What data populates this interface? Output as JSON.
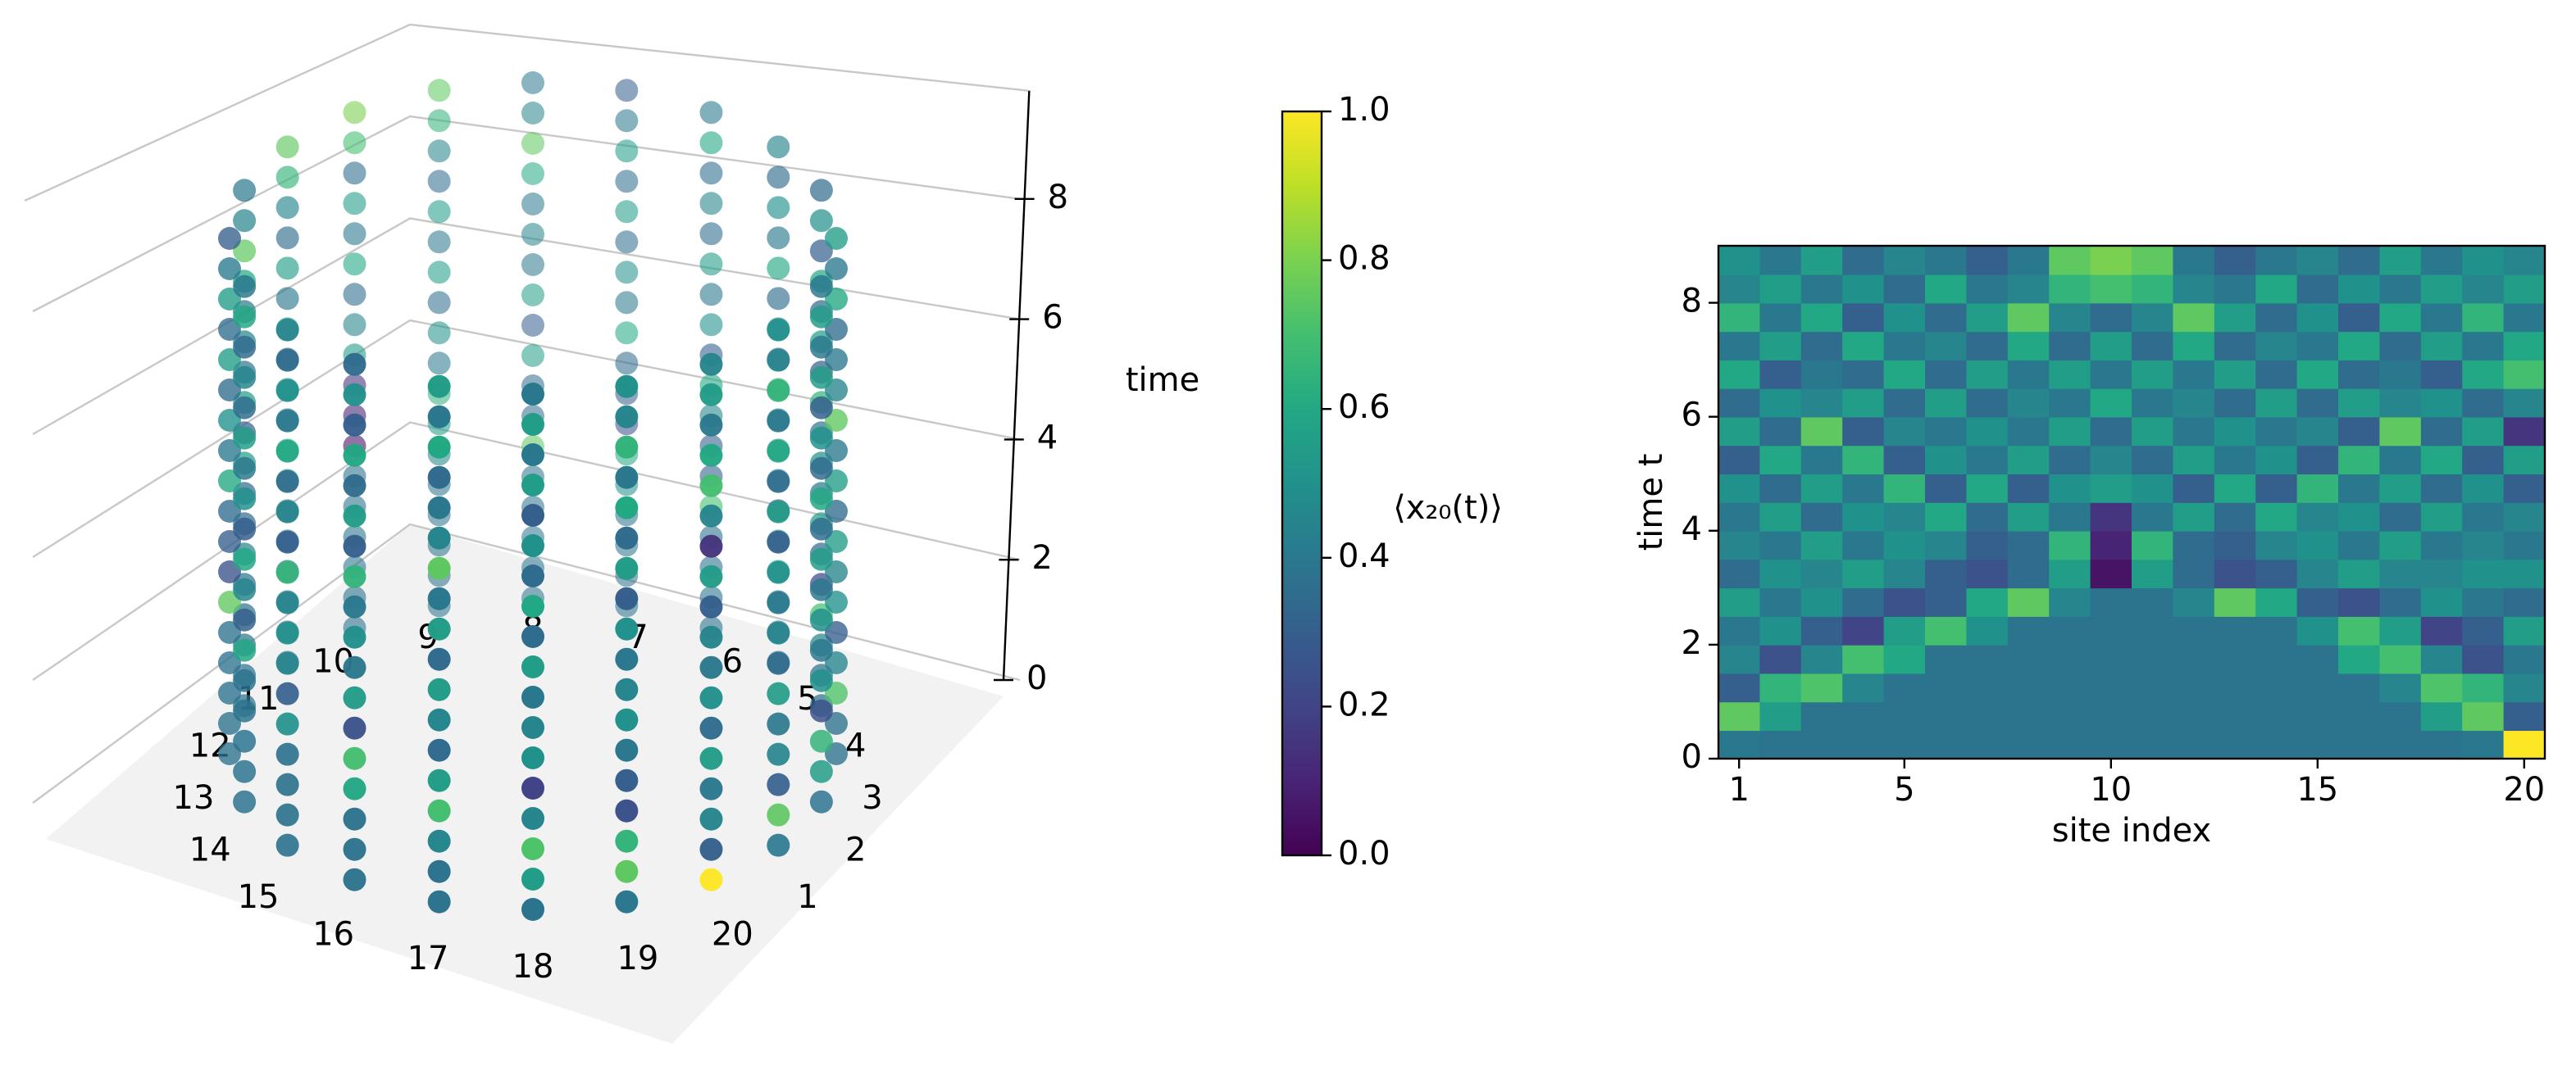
{
  "chart_data": [
    {
      "type": "scatter3d",
      "categories": [
        "1",
        "2",
        "3",
        "4",
        "5",
        "6",
        "7",
        "8",
        "9",
        "10",
        "11",
        "12",
        "13",
        "14",
        "15",
        "16",
        "17",
        "18",
        "19",
        "20"
      ],
      "zlabel": "time",
      "zlim": [
        0,
        9.8
      ],
      "zticks": [
        0,
        2,
        4,
        6,
        8
      ],
      "colormap": "viridis",
      "pane_color": "#f2f2f2",
      "colorbar": {
        "label": "⟨x₂₀(t)⟩",
        "lim": [
          0,
          1
        ],
        "ticks": [
          {
            "value": 0,
            "label": "0.0"
          },
          0.2,
          0.4,
          0.6,
          0.8,
          {
            "value": 1,
            "label": "1.0"
          }
        ]
      }
    },
    {
      "type": "heatmap",
      "xlabel": "site index",
      "ylabel": "time t",
      "colormap": "viridis",
      "x": [
        1,
        2,
        3,
        4,
        5,
        6,
        7,
        8,
        9,
        10,
        11,
        12,
        13,
        14,
        15,
        16,
        17,
        18,
        19,
        20
      ],
      "y": [
        0,
        0.5,
        1,
        1.5,
        2,
        2.5,
        3,
        3.5,
        4,
        4.5,
        5,
        5.5,
        6,
        6.5,
        7,
        7.5,
        8,
        8.5
      ],
      "xlim": [
        0.5,
        20.5
      ],
      "ylim": [
        0,
        9
      ],
      "xticks": [
        1,
        5,
        10,
        15,
        20
      ],
      "yticks": [
        0,
        2,
        4,
        6,
        8
      ],
      "z": [
        [
          0.4,
          0.38,
          0.38,
          0.38,
          0.38,
          0.38,
          0.38,
          0.38,
          0.38,
          0.38,
          0.38,
          0.38,
          0.38,
          0.38,
          0.38,
          0.38,
          0.38,
          0.38,
          0.4,
          1.0
        ],
        [
          0.75,
          0.55,
          0.38,
          0.38,
          0.38,
          0.38,
          0.38,
          0.38,
          0.38,
          0.38,
          0.38,
          0.38,
          0.38,
          0.38,
          0.38,
          0.38,
          0.38,
          0.55,
          0.75,
          0.3
        ],
        [
          0.3,
          0.65,
          0.72,
          0.45,
          0.38,
          0.38,
          0.38,
          0.38,
          0.38,
          0.38,
          0.38,
          0.38,
          0.38,
          0.38,
          0.38,
          0.38,
          0.45,
          0.72,
          0.65,
          0.45
        ],
        [
          0.45,
          0.25,
          0.45,
          0.7,
          0.6,
          0.38,
          0.38,
          0.38,
          0.38,
          0.38,
          0.38,
          0.38,
          0.38,
          0.38,
          0.38,
          0.6,
          0.7,
          0.45,
          0.25,
          0.4
        ],
        [
          0.4,
          0.5,
          0.3,
          0.2,
          0.55,
          0.7,
          0.5,
          0.38,
          0.38,
          0.38,
          0.38,
          0.38,
          0.38,
          0.38,
          0.5,
          0.7,
          0.55,
          0.2,
          0.3,
          0.55
        ],
        [
          0.55,
          0.4,
          0.5,
          0.35,
          0.25,
          0.3,
          0.6,
          0.75,
          0.45,
          0.38,
          0.38,
          0.45,
          0.75,
          0.6,
          0.3,
          0.25,
          0.35,
          0.5,
          0.4,
          0.35
        ],
        [
          0.35,
          0.5,
          0.45,
          0.55,
          0.45,
          0.3,
          0.25,
          0.35,
          0.55,
          0.05,
          0.55,
          0.35,
          0.25,
          0.3,
          0.45,
          0.55,
          0.45,
          0.45,
          0.5,
          0.5
        ],
        [
          0.45,
          0.4,
          0.55,
          0.4,
          0.5,
          0.45,
          0.3,
          0.35,
          0.65,
          0.1,
          0.65,
          0.35,
          0.3,
          0.45,
          0.5,
          0.4,
          0.55,
          0.4,
          0.45,
          0.4
        ],
        [
          0.4,
          0.55,
          0.35,
          0.5,
          0.45,
          0.6,
          0.35,
          0.55,
          0.4,
          0.15,
          0.4,
          0.55,
          0.35,
          0.6,
          0.45,
          0.5,
          0.35,
          0.55,
          0.4,
          0.45
        ],
        [
          0.5,
          0.35,
          0.55,
          0.4,
          0.65,
          0.3,
          0.6,
          0.3,
          0.5,
          0.55,
          0.5,
          0.3,
          0.6,
          0.3,
          0.65,
          0.4,
          0.55,
          0.35,
          0.5,
          0.3
        ],
        [
          0.3,
          0.6,
          0.4,
          0.65,
          0.3,
          0.5,
          0.4,
          0.55,
          0.35,
          0.45,
          0.35,
          0.55,
          0.4,
          0.5,
          0.3,
          0.65,
          0.4,
          0.6,
          0.3,
          0.55
        ],
        [
          0.55,
          0.35,
          0.75,
          0.3,
          0.45,
          0.4,
          0.5,
          0.4,
          0.55,
          0.35,
          0.55,
          0.4,
          0.5,
          0.4,
          0.45,
          0.3,
          0.75,
          0.35,
          0.55,
          0.15
        ],
        [
          0.35,
          0.5,
          0.45,
          0.55,
          0.35,
          0.55,
          0.35,
          0.45,
          0.4,
          0.6,
          0.4,
          0.45,
          0.35,
          0.55,
          0.35,
          0.55,
          0.45,
          0.5,
          0.35,
          0.45
        ],
        [
          0.6,
          0.3,
          0.4,
          0.35,
          0.6,
          0.35,
          0.55,
          0.4,
          0.55,
          0.4,
          0.55,
          0.4,
          0.55,
          0.35,
          0.6,
          0.35,
          0.4,
          0.3,
          0.6,
          0.7
        ],
        [
          0.4,
          0.55,
          0.35,
          0.6,
          0.4,
          0.45,
          0.35,
          0.6,
          0.35,
          0.55,
          0.35,
          0.6,
          0.35,
          0.45,
          0.4,
          0.6,
          0.35,
          0.55,
          0.4,
          0.6
        ],
        [
          0.65,
          0.4,
          0.6,
          0.3,
          0.5,
          0.35,
          0.55,
          0.75,
          0.45,
          0.35,
          0.45,
          0.75,
          0.55,
          0.35,
          0.5,
          0.3,
          0.6,
          0.4,
          0.65,
          0.4
        ],
        [
          0.45,
          0.55,
          0.4,
          0.5,
          0.35,
          0.6,
          0.4,
          0.45,
          0.65,
          0.7,
          0.65,
          0.45,
          0.4,
          0.6,
          0.35,
          0.5,
          0.4,
          0.55,
          0.45,
          0.55
        ],
        [
          0.5,
          0.4,
          0.55,
          0.35,
          0.45,
          0.4,
          0.3,
          0.4,
          0.75,
          0.8,
          0.75,
          0.4,
          0.3,
          0.4,
          0.45,
          0.35,
          0.55,
          0.4,
          0.5,
          0.45
        ]
      ]
    }
  ]
}
